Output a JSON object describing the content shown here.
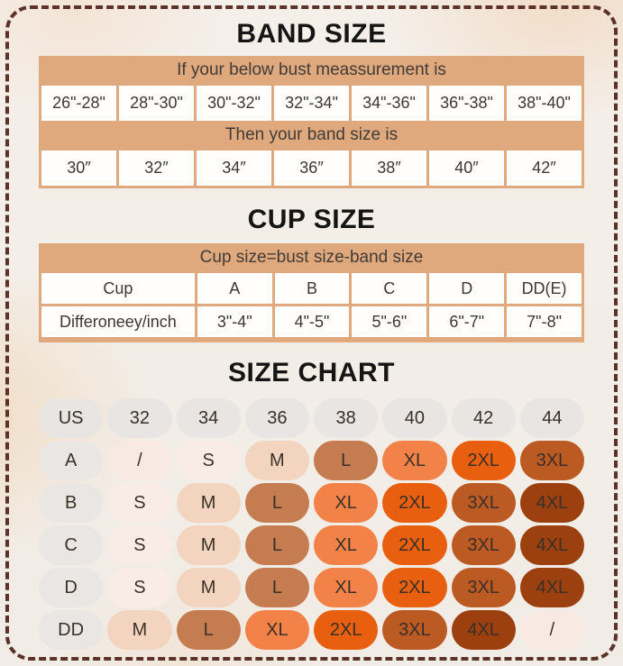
{
  "theme": {
    "background": "#f3eee8",
    "frame_border": "#5a3229",
    "table_background": "#dfa87d",
    "cell_background": "#ffffff",
    "text": "#3b3834"
  },
  "band_size": {
    "title": "BAND SIZE",
    "bust_header": "If your below bust meassurement is",
    "bust_ranges": [
      "26\"-28\"",
      "28\"-30\"",
      "30\"-32\"",
      "32\"-34\"",
      "34\"-36\"",
      "36\"-38\"",
      "38\"-40\""
    ],
    "band_header": "Then your band size is",
    "band_values": [
      "30″",
      "32″",
      "34″",
      "36″",
      "38″",
      "40″",
      "42″"
    ]
  },
  "cup_size": {
    "title": "CUP SIZE",
    "formula_header": "Cup size=bust size-band size",
    "cup_row": [
      "Cup",
      "A",
      "B",
      "C",
      "D",
      "DD(E)"
    ],
    "difference_row": [
      "Differoneey/inch",
      "3\"-4\"",
      "4\"-5\"",
      "5\"-6\"",
      "6\"-7\"",
      "7\"-8\""
    ]
  },
  "size_chart": {
    "title": "SIZE CHART",
    "header_row": [
      "US",
      "32",
      "34",
      "36",
      "38",
      "40",
      "42",
      "44"
    ],
    "rows": [
      {
        "label": "A",
        "cells": [
          "/",
          "S",
          "M",
          "L",
          "XL",
          "2XL",
          "3XL"
        ]
      },
      {
        "label": "B",
        "cells": [
          "S",
          "M",
          "L",
          "XL",
          "2XL",
          "3XL",
          "4XL"
        ]
      },
      {
        "label": "C",
        "cells": [
          "S",
          "M",
          "L",
          "XL",
          "2XL",
          "3XL",
          "4XL"
        ]
      },
      {
        "label": "D",
        "cells": [
          "S",
          "M",
          "L",
          "XL",
          "2XL",
          "3XL",
          "4XL"
        ]
      },
      {
        "label": "DD",
        "cells": [
          "M",
          "L",
          "XL",
          "2XL",
          "3XL",
          "4XL",
          "/"
        ]
      }
    ],
    "pill_colors": {
      "header": "#e9e5e2",
      "label": "#eae6e3",
      "/": "#f8eae3",
      "S": "#f9ece6",
      "M": "#f3d5bf",
      "L": "#c47c50",
      "XL": "#f28248",
      "2XL": "#e8600f",
      "3XL": "#bc5a23",
      "4XL": "#9c400f"
    }
  }
}
